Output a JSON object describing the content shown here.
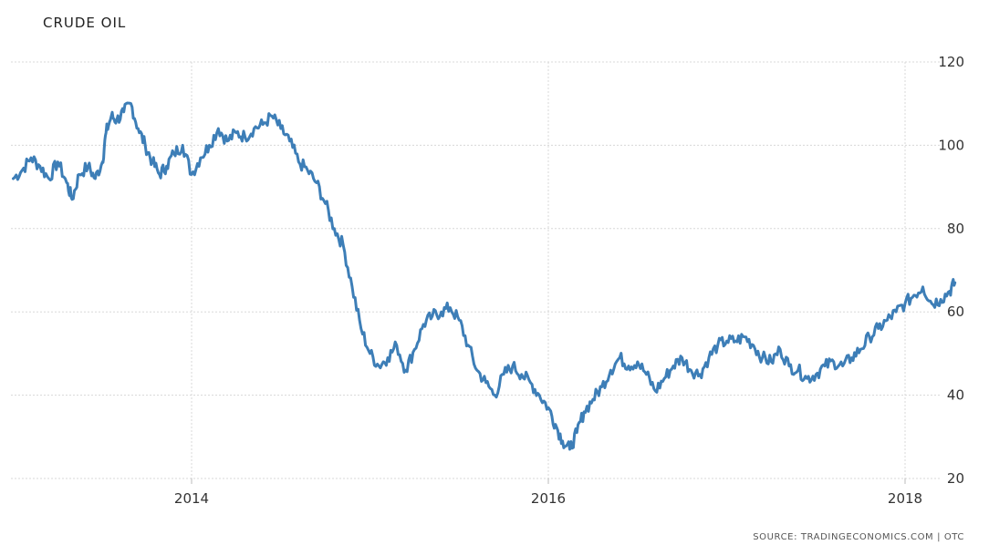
{
  "chart_data": {
    "type": "line",
    "title": "CRUDE OIL",
    "source": "SOURCE: TRADINGECONOMICS.COM | OTC",
    "xlabel": "",
    "ylabel": "",
    "x_ticks": [
      "2014",
      "2016",
      "2018"
    ],
    "x_tick_values": [
      2014.0,
      2016.0,
      2018.0
    ],
    "y_ticks": [
      "20",
      "40",
      "60",
      "80",
      "100",
      "120"
    ],
    "y_tick_values": [
      20,
      40,
      60,
      80,
      100,
      120
    ],
    "xlim": [
      2013.0,
      2018.35
    ],
    "ylim": [
      20,
      120
    ],
    "grid": true,
    "y_axis_side": "right",
    "line_color": "#3d7eb7",
    "grid_color": "#d8d8d8",
    "series": [
      {
        "x": [
          2013.0,
          2013.05,
          2013.1,
          2013.15,
          2013.2,
          2013.25,
          2013.3,
          2013.33,
          2013.37,
          2013.42,
          2013.46,
          2013.5,
          2013.52,
          2013.55,
          2013.58,
          2013.62,
          2013.66,
          2013.7,
          2013.74,
          2013.78,
          2013.82,
          2013.86,
          2013.9,
          2013.95,
          2014.0,
          2014.05,
          2014.1,
          2014.15,
          2014.2,
          2014.25,
          2014.3,
          2014.35,
          2014.4,
          2014.45,
          2014.5,
          2014.55,
          2014.6,
          2014.65,
          2014.7,
          2014.75,
          2014.8,
          2014.85,
          2014.9,
          2014.95,
          2015.0,
          2015.05,
          2015.1,
          2015.15,
          2015.2,
          2015.25,
          2015.3,
          2015.35,
          2015.4,
          2015.45,
          2015.5,
          2015.55,
          2015.6,
          2015.65,
          2015.7,
          2015.75,
          2015.8,
          2015.85,
          2015.9,
          2015.95,
          2016.0,
          2016.04,
          2016.08,
          2016.12,
          2016.16,
          2016.2,
          2016.25,
          2016.3,
          2016.35,
          2016.4,
          2016.45,
          2016.5,
          2016.55,
          2016.6,
          2016.65,
          2016.7,
          2016.75,
          2016.8,
          2016.85,
          2016.9,
          2016.95,
          2017.0,
          2017.05,
          2017.1,
          2017.15,
          2017.2,
          2017.25,
          2017.3,
          2017.35,
          2017.4,
          2017.45,
          2017.5,
          2017.55,
          2017.6,
          2017.65,
          2017.7,
          2017.75,
          2017.8,
          2017.85,
          2017.9,
          2017.95,
          2018.0,
          2018.05,
          2018.1,
          2018.15,
          2018.2,
          2018.25,
          2018.28
        ],
        "values": [
          92,
          94,
          97,
          95,
          92,
          96,
          91,
          87,
          93,
          95,
          92,
          96,
          103,
          107,
          106,
          108,
          110,
          104,
          100,
          96,
          93,
          95,
          98,
          100,
          93,
          97,
          100,
          104,
          101,
          103,
          102,
          104,
          105,
          107,
          104,
          101,
          96,
          94,
          91,
          86,
          80,
          76,
          66,
          56,
          50,
          47,
          49,
          52,
          46,
          51,
          57,
          59,
          60,
          61,
          58,
          52,
          46,
          43,
          40,
          45,
          47,
          45,
          43,
          40,
          37,
          33,
          29,
          27,
          31,
          36,
          39,
          42,
          46,
          49,
          47,
          48,
          45,
          41,
          44,
          47,
          49,
          46,
          45,
          49,
          52,
          53,
          53,
          54,
          52,
          49,
          48,
          51,
          47,
          46,
          44,
          45,
          47,
          48,
          47,
          49,
          51,
          54,
          56,
          58,
          60,
          62,
          64,
          66,
          62,
          63,
          65,
          67
        ]
      }
    ]
  }
}
